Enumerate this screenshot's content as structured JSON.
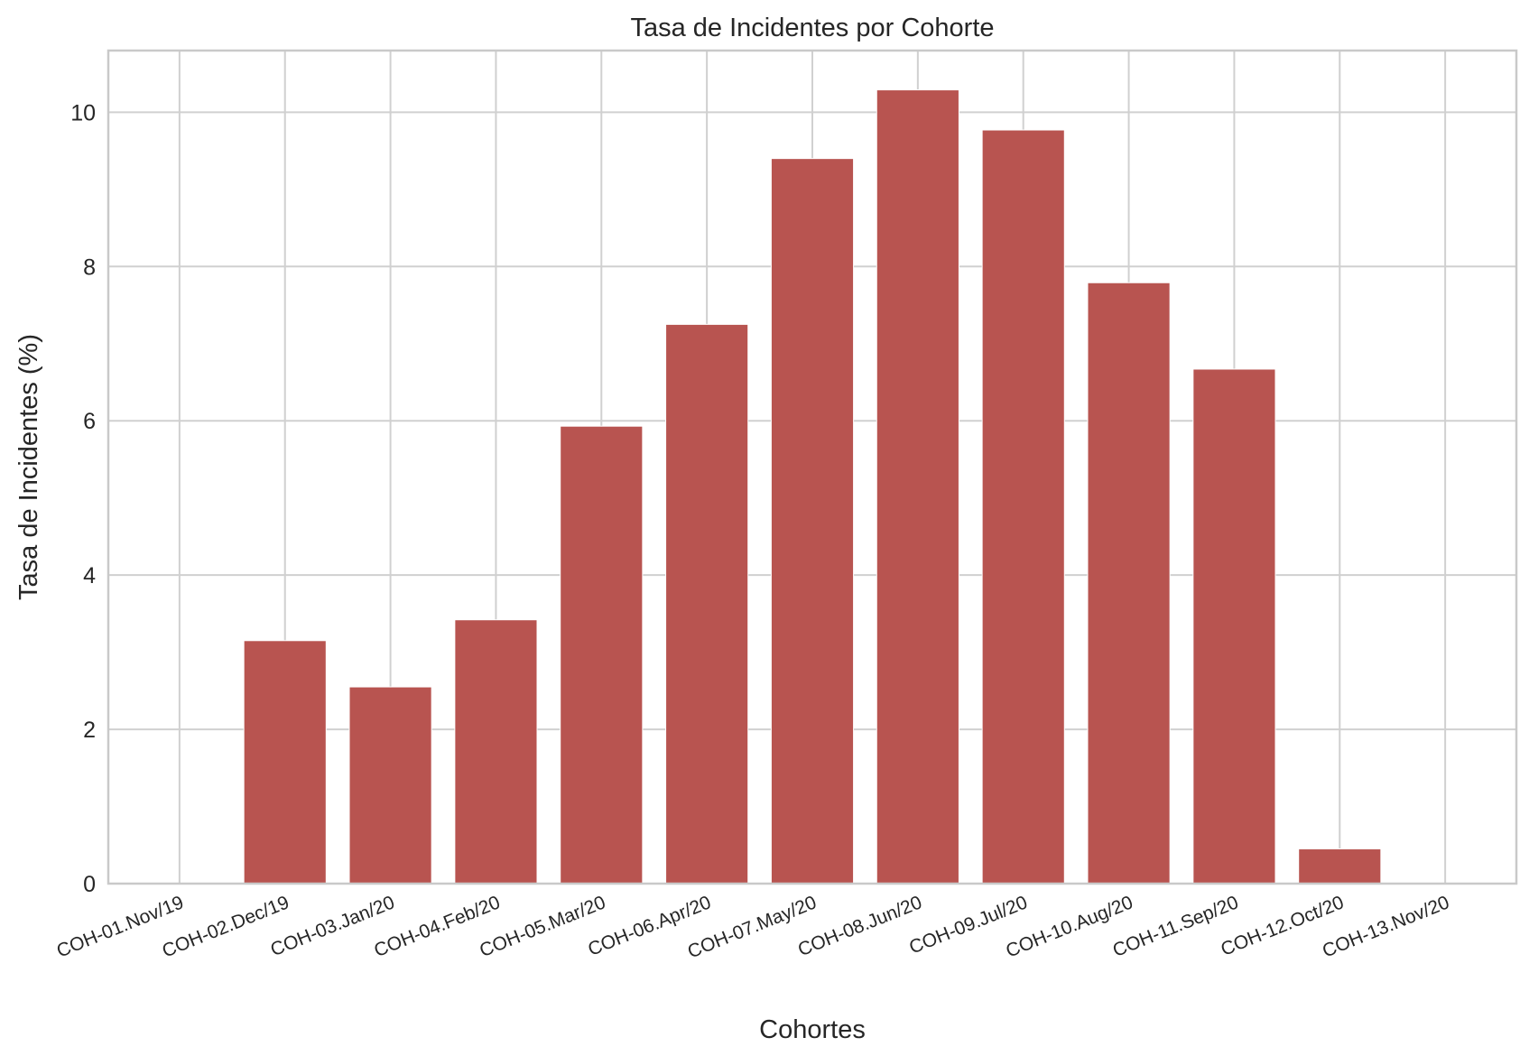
{
  "chart_data": {
    "type": "bar",
    "title": "Tasa de Incidentes por Cohorte",
    "xlabel": "Cohortes",
    "ylabel": "Tasa de Incidentes (%)",
    "categories": [
      "COH-01.Nov/19",
      "COH-02.Dec/19",
      "COH-03.Jan/20",
      "COH-04.Feb/20",
      "COH-05.Mar/20",
      "COH-06.Apr/20",
      "COH-07.May/20",
      "COH-08.Jun/20",
      "COH-09.Jul/20",
      "COH-10.Aug/20",
      "COH-11.Sep/20",
      "COH-12.Oct/20",
      "COH-13.Nov/20"
    ],
    "values": [
      0,
      3.15,
      2.55,
      3.42,
      5.93,
      7.25,
      9.4,
      10.29,
      9.77,
      7.79,
      6.67,
      0.45,
      0
    ],
    "ylim": [
      0,
      10.8
    ],
    "yticks": [
      0,
      2,
      4,
      6,
      8,
      10
    ],
    "grid": true,
    "bar_color": "#b85450"
  }
}
